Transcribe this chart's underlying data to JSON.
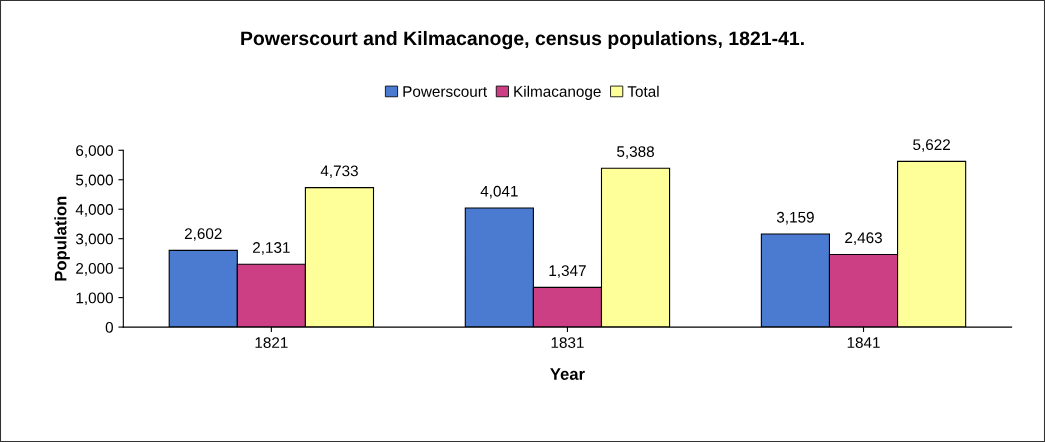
{
  "chart_data": {
    "type": "bar",
    "title": "Powerscourt and Kilmacanoge, census populations, 1821-41.",
    "xlabel": "Year",
    "ylabel": "Population",
    "categories": [
      "1821",
      "1831",
      "1841"
    ],
    "series": [
      {
        "name": "Powerscourt",
        "color": "#4a7bd0",
        "values": [
          2602,
          4041,
          3159
        ],
        "value_labels": [
          "2,602",
          "4,041",
          "3,159"
        ]
      },
      {
        "name": "Kilmacanoge",
        "color": "#cc3f84",
        "values": [
          2131,
          1347,
          2463
        ],
        "value_labels": [
          "2,131",
          "1,347",
          "2,463"
        ]
      },
      {
        "name": "Total",
        "color": "#ffff99",
        "values": [
          4733,
          5388,
          5622
        ],
        "value_labels": [
          "4,733",
          "5,388",
          "5,622"
        ]
      }
    ],
    "ylim": [
      0,
      6000
    ],
    "yticks": [
      {
        "value": 0,
        "label": "0"
      },
      {
        "value": 1000,
        "label": "1,000"
      },
      {
        "value": 2000,
        "label": "2,000"
      },
      {
        "value": 3000,
        "label": "3,000"
      },
      {
        "value": 4000,
        "label": "4,000"
      },
      {
        "value": 5000,
        "label": "5,000"
      },
      {
        "value": 6000,
        "label": "6,000"
      }
    ],
    "grid": false,
    "legend": "top"
  }
}
